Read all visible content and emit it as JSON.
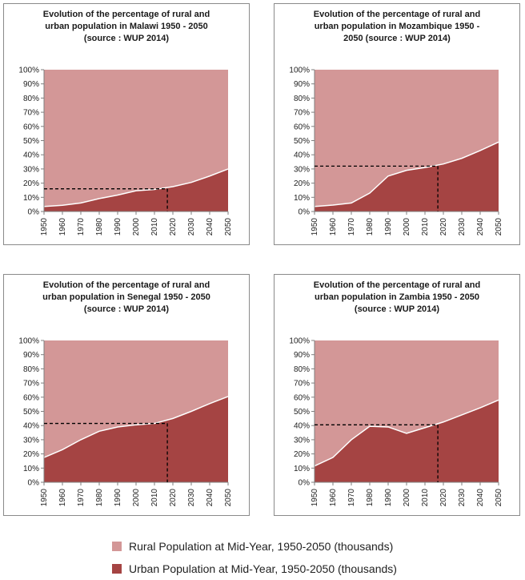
{
  "colors": {
    "rural": "#d39797",
    "urban": "#a54443",
    "reference_line": "#000000"
  },
  "legend": [
    {
      "label": "Rural Population at Mid-Year, 1950-2050 (thousands)",
      "color": "#d39797"
    },
    {
      "label": "Urban Population at Mid-Year, 1950-2050 (thousands)",
      "color": "#a54443"
    }
  ],
  "chart_data": [
    {
      "type": "area",
      "title_lines": [
        "Evolution of the percentage of rural  and",
        "urban population in Malawi 1950  -  2050",
        "(source : WUP 2014)"
      ],
      "x": [
        1950,
        1960,
        1970,
        1980,
        1990,
        2000,
        2010,
        2020,
        2030,
        2040,
        2050
      ],
      "x_ticks": [
        "1950",
        "1960",
        "1970",
        "1980",
        "1990",
        "2000",
        "2010",
        "2020",
        "2030",
        "2040",
        "2050"
      ],
      "y_ticks": [
        "0%",
        "10%",
        "20%",
        "30%",
        "40%",
        "50%",
        "60%",
        "70%",
        "80%",
        "90%",
        "100%"
      ],
      "ylim": [
        0,
        100
      ],
      "series": [
        {
          "name": "Urban Population at Mid-Year, 1950-2050 (thousands)",
          "values": [
            3.5,
            4.4,
            6.0,
            9.1,
            11.6,
            14.6,
            15.5,
            17.5,
            20.5,
            25.0,
            30.0
          ]
        },
        {
          "name": "Rural Population at Mid-Year, 1950-2050 (thousands)",
          "values": [
            96.5,
            95.6,
            94.0,
            90.9,
            88.4,
            85.4,
            84.5,
            82.5,
            79.5,
            75.0,
            70.0
          ]
        }
      ],
      "reference_point": {
        "x": 2017,
        "y": 16
      }
    },
    {
      "type": "area",
      "title_lines": [
        "Evolution of the percentage of rural  and",
        "urban population in Mozambique 1950  -",
        "2050  (source : WUP 2014)"
      ],
      "x": [
        1950,
        1960,
        1970,
        1980,
        1990,
        2000,
        2010,
        2020,
        2030,
        2040,
        2050
      ],
      "x_ticks": [
        "1950",
        "1960",
        "1970",
        "1980",
        "1990",
        "2000",
        "2010",
        "2020",
        "2030",
        "2040",
        "2050"
      ],
      "y_ticks": [
        "0%",
        "10%",
        "20%",
        "30%",
        "40%",
        "50%",
        "60%",
        "70%",
        "80%",
        "90%",
        "100%"
      ],
      "ylim": [
        0,
        100
      ],
      "series": [
        {
          "name": "Urban Population at Mid-Year, 1950-2050 (thousands)",
          "values": [
            3.5,
            4.5,
            6.0,
            13.0,
            25.0,
            29.0,
            31.0,
            33.5,
            37.5,
            43.0,
            49.0
          ]
        },
        {
          "name": "Rural Population at Mid-Year, 1950-2050 (thousands)",
          "values": [
            96.5,
            95.5,
            94.0,
            87.0,
            75.0,
            71.0,
            69.0,
            66.5,
            62.5,
            57.0,
            51.0
          ]
        }
      ],
      "reference_point": {
        "x": 2017,
        "y": 32
      }
    },
    {
      "type": "area",
      "title_lines": [
        "Evolution of the percentage of rural  and",
        "urban population in Senegal 1950  -  2050",
        "(source : WUP 2014)"
      ],
      "x": [
        1950,
        1960,
        1970,
        1980,
        1990,
        2000,
        2010,
        2020,
        2030,
        2040,
        2050
      ],
      "x_ticks": [
        "1950",
        "1960",
        "1970",
        "1980",
        "1990",
        "2000",
        "2010",
        "2020",
        "2030",
        "2040",
        "2050"
      ],
      "y_ticks": [
        "0%",
        "10%",
        "20%",
        "30%",
        "40%",
        "50%",
        "60%",
        "70%",
        "80%",
        "90%",
        "100%"
      ],
      "ylim": [
        0,
        100
      ],
      "series": [
        {
          "name": "Urban Population at Mid-Year, 1950-2050 (thousands)",
          "values": [
            17.5,
            23.0,
            30.0,
            36.0,
            39.0,
            40.5,
            41.5,
            45.0,
            50.0,
            55.5,
            60.5
          ]
        },
        {
          "name": "Rural Population at Mid-Year, 1950-2050 (thousands)",
          "values": [
            82.5,
            77.0,
            70.0,
            64.0,
            61.0,
            59.5,
            58.5,
            55.0,
            50.0,
            44.5,
            39.5
          ]
        }
      ],
      "reference_point": {
        "x": 2017,
        "y": 41.5
      }
    },
    {
      "type": "area",
      "title_lines": [
        "Evolution of the percentage of rural  and",
        "urban population in Zambia 1950  -  2050",
        "(source : WUP 2014)"
      ],
      "x": [
        1950,
        1960,
        1970,
        1980,
        1990,
        2000,
        2010,
        2020,
        2030,
        2040,
        2050
      ],
      "x_ticks": [
        "1950",
        "1960",
        "1970",
        "1980",
        "1990",
        "2000",
        "2010",
        "2020",
        "2030",
        "2040",
        "2050"
      ],
      "y_ticks": [
        "0%",
        "10%",
        "20%",
        "30%",
        "40%",
        "50%",
        "60%",
        "70%",
        "80%",
        "90%",
        "100%"
      ],
      "ylim": [
        0,
        100
      ],
      "series": [
        {
          "name": "Urban Population at Mid-Year, 1950-2050 (thousands)",
          "values": [
            11.5,
            17.5,
            30.0,
            39.5,
            39.0,
            34.5,
            38.5,
            42.5,
            47.5,
            52.5,
            58.0
          ]
        },
        {
          "name": "Rural Population at Mid-Year, 1950-2050 (thousands)",
          "values": [
            88.5,
            82.5,
            70.0,
            60.5,
            61.0,
            65.5,
            61.5,
            57.5,
            52.5,
            47.5,
            42.0
          ]
        }
      ],
      "reference_point": {
        "x": 2017,
        "y": 40.5
      }
    }
  ]
}
